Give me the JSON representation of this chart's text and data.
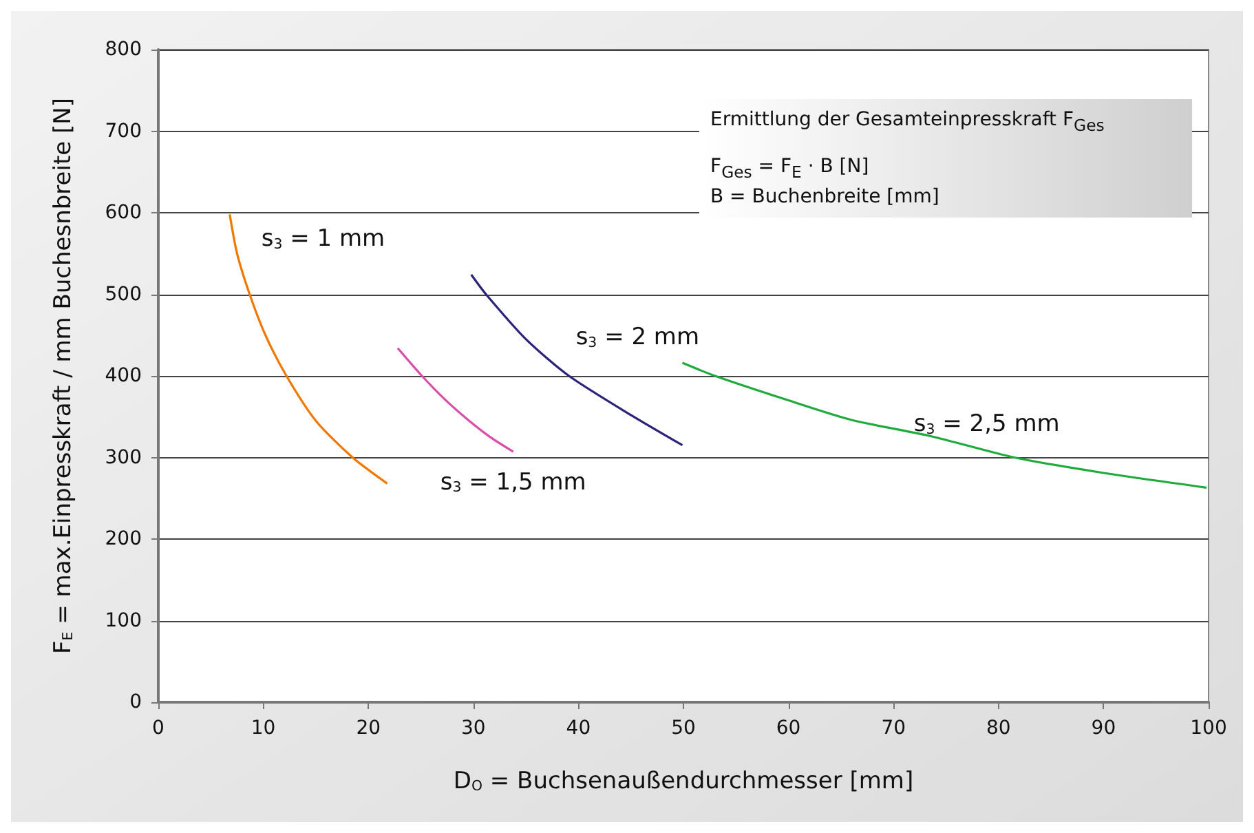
{
  "chart_data": {
    "type": "line",
    "xlabel": "D$_{O}$ = Buchsenaußendurchmesser [mm]",
    "ylabel": "F$_{E}$ = max.Einpresskraft / mm Buchesnbreite [N]",
    "xlim": [
      0,
      100
    ],
    "xticks": [
      0,
      10,
      20,
      30,
      40,
      50,
      60,
      70,
      80,
      90,
      100
    ],
    "ylim": [
      0,
      800
    ],
    "yticks": [
      0,
      100,
      200,
      300,
      400,
      500,
      600,
      700,
      800
    ],
    "grid": "y",
    "marker": "none",
    "line_style": "solid",
    "legend": false,
    "series": [
      {
        "name": "s$_{3}$ = 1 mm",
        "color": "#f07800",
        "x": [
          6.8,
          7.5,
          8.7,
          10.2,
          12.2,
          15,
          18.5,
          21.8
        ],
        "values": [
          598,
          550,
          500,
          450,
          400,
          345,
          300,
          268
        ]
      },
      {
        "name": "s$_{3}$ = 1,5 mm",
        "color": "#d94fa8",
        "x": [
          22.8,
          25.1,
          27.3,
          29.5,
          31.6,
          33.8
        ],
        "values": [
          434,
          400,
          371,
          346,
          325,
          307
        ]
      },
      {
        "name": "s$_{3}$ = 2 mm",
        "color": "#2b237a",
        "x": [
          29.8,
          31.2,
          35,
          39.1,
          45,
          49.9
        ],
        "values": [
          524,
          500,
          445,
          400,
          352,
          315
        ]
      },
      {
        "name": "s$_{3}$ = 2,5 mm",
        "color": "#1faa3c",
        "x": [
          49.9,
          53,
          60,
          66,
          73.6,
          81.5,
          90,
          99.8
        ],
        "values": [
          416,
          400,
          370,
          346,
          326,
          300,
          281,
          263
        ]
      }
    ],
    "annotations": [
      "Ermittlung der Gesamteinpresskraft F$_{Ges}$",
      "F$_{Ges}$ = F$_{E}$ · B [N]",
      "B = Buchenbreite [mm]"
    ]
  }
}
